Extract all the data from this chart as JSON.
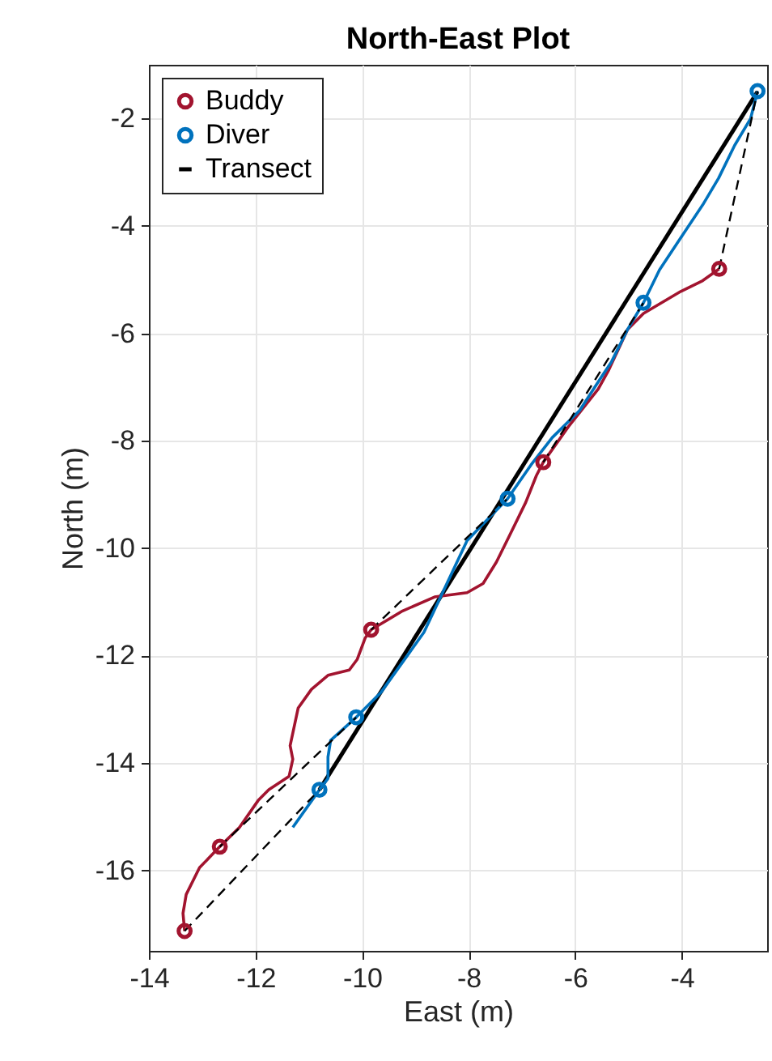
{
  "chart_data": {
    "type": "line",
    "title": "North-East Plot",
    "xlabel": "East (m)",
    "ylabel": "North (m)",
    "xlim": [
      -14,
      -2.4
    ],
    "ylim": [
      -17.5,
      -1
    ],
    "xticks": [
      -14,
      -12,
      -10,
      -8,
      -6,
      -4
    ],
    "yticks": [
      -16,
      -14,
      -12,
      -10,
      -8,
      -6,
      -4,
      -2
    ],
    "grid": true,
    "legend": "top left",
    "series": [
      {
        "type": "scatter",
        "name": "Buddy",
        "color": "#a2142f",
        "marker": "circle",
        "x": [
          -13.33,
          -12.67,
          -9.83,
          -6.6,
          -3.3
        ],
        "values": [
          -17.13,
          -15.56,
          -11.52,
          -8.4,
          -4.8
        ]
      },
      {
        "type": "scatter",
        "name": "Diver",
        "color": "#0072bd",
        "marker": "circle",
        "x": [
          -10.8,
          -10.11,
          -7.27,
          -4.72,
          -2.58
        ],
        "values": [
          -14.5,
          -13.15,
          -9.08,
          -5.43,
          -1.49
        ]
      },
      {
        "name": "Transect",
        "color": "#000000",
        "line_style": "solid",
        "x": [
          -2.58,
          -10.8
        ],
        "values": [
          -1.5,
          -14.5
        ]
      },
      {
        "color": "#a2142f",
        "line_style": "solid",
        "x": [
          -13.33,
          -13.36,
          -13.3,
          -13.05,
          -12.67,
          -12.3,
          -11.95,
          -11.75,
          -11.37,
          -11.3,
          -11.35,
          -11.2,
          -10.95,
          -10.64,
          -10.24,
          -10.09,
          -9.94,
          -9.83,
          -9.24,
          -8.64,
          -8.03,
          -7.73,
          -7.48,
          -7.23,
          -6.93,
          -6.73,
          -6.6,
          -6.13,
          -5.57,
          -5.37,
          -5.02,
          -4.72,
          -4.02,
          -3.61,
          -3.3
        ],
        "values": [
          -17.13,
          -16.8,
          -16.45,
          -15.95,
          -15.56,
          -15.2,
          -14.7,
          -14.5,
          -14.25,
          -13.93,
          -13.68,
          -12.98,
          -12.63,
          -12.37,
          -12.27,
          -12.07,
          -11.67,
          -11.52,
          -11.17,
          -10.91,
          -10.83,
          -10.66,
          -10.26,
          -9.76,
          -9.15,
          -8.65,
          -8.4,
          -7.74,
          -7.04,
          -6.68,
          -5.93,
          -5.63,
          -5.22,
          -5.02,
          -4.8
        ]
      },
      {
        "color": "#0072bd",
        "line_style": "solid",
        "x": [
          -2.58,
          -2.71,
          -3.01,
          -3.31,
          -3.61,
          -4.02,
          -4.42,
          -4.72,
          -5.02,
          -5.32,
          -5.52,
          -5.92,
          -6.43,
          -6.83,
          -7.27,
          -7.73,
          -8.03,
          -8.84,
          -9.64,
          -10.11,
          -10.59,
          -10.64,
          -10.64,
          -10.8,
          -11.3
        ],
        "values": [
          -1.49,
          -2.0,
          -2.5,
          -3.11,
          -3.61,
          -4.22,
          -4.82,
          -5.43,
          -5.93,
          -6.53,
          -6.83,
          -7.44,
          -7.94,
          -8.45,
          -9.08,
          -9.55,
          -9.86,
          -11.57,
          -12.68,
          -13.15,
          -13.58,
          -13.89,
          -14.29,
          -14.5,
          -15.2
        ]
      },
      {
        "color": "#000000",
        "line_style": "dashed",
        "x": [
          -13.33,
          -10.8
        ],
        "values": [
          -17.13,
          -14.5
        ]
      },
      {
        "color": "#000000",
        "line_style": "dashed",
        "x": [
          -12.67,
          -10.11
        ],
        "values": [
          -15.56,
          -13.15
        ]
      },
      {
        "color": "#000000",
        "line_style": "dashed",
        "x": [
          -9.83,
          -7.27
        ],
        "values": [
          -11.52,
          -9.08
        ]
      },
      {
        "color": "#000000",
        "line_style": "dashed",
        "x": [
          -6.6,
          -4.72
        ],
        "values": [
          -8.4,
          -5.43
        ]
      },
      {
        "color": "#000000",
        "line_style": "dashed",
        "x": [
          -3.3,
          -2.58
        ],
        "values": [
          -4.8,
          -1.49
        ]
      }
    ]
  }
}
